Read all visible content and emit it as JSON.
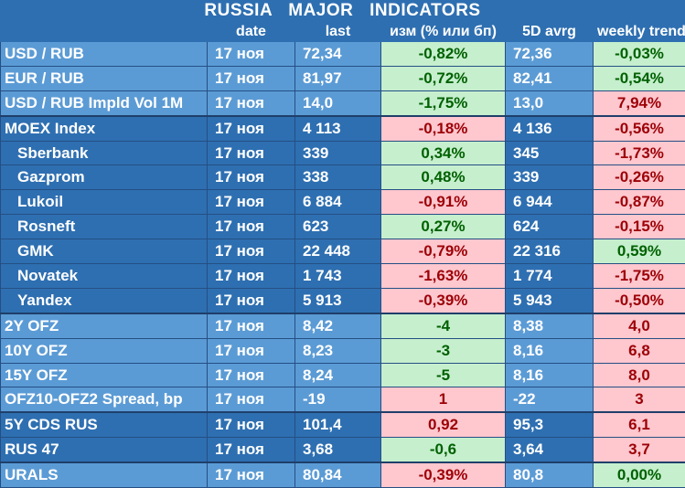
{
  "title": "RUSSIA  MAJOR  INDICATORS",
  "headers": [
    "date",
    "last",
    "изм (% или бп)",
    "5D avrg",
    "weekly trend"
  ],
  "colors": {
    "light_blue": "#5b9bd5",
    "dark_blue": "#2e6fb1",
    "positive_bg": "#c6efce",
    "positive_text": "#006100",
    "negative_bg": "#ffc7ce",
    "negative_text": "#9c0006"
  },
  "rows": [
    {
      "name": "USD / RUB",
      "date": "17 ноя",
      "last": "72,34",
      "chg": "-0,82%",
      "chg_style": "g",
      "avg": "72,36",
      "trend": "-0,03%",
      "trend_style": "g",
      "shade": "light",
      "indent": false,
      "sep": false
    },
    {
      "name": "EUR / RUB",
      "date": "17 ноя",
      "last": "81,97",
      "chg": "-0,72%",
      "chg_style": "g",
      "avg": "82,41",
      "trend": "-0,54%",
      "trend_style": "g",
      "shade": "light",
      "indent": false,
      "sep": false
    },
    {
      "name": "USD / RUB Impld Vol 1M",
      "date": "17 ноя",
      "last": "14,0",
      "chg": "-1,75%",
      "chg_style": "g",
      "avg": "13,0",
      "trend": "7,94%",
      "trend_style": "r",
      "shade": "light",
      "indent": false,
      "sep": false
    },
    {
      "name": "MOEX Index",
      "date": "17 ноя",
      "last": "4 113",
      "chg": "-0,18%",
      "chg_style": "r",
      "avg": "4 136",
      "trend": "-0,56%",
      "trend_style": "r",
      "shade": "dark",
      "indent": false,
      "sep": true
    },
    {
      "name": "Sberbank",
      "date": "17 ноя",
      "last": "339",
      "chg": "0,34%",
      "chg_style": "g",
      "avg": "345",
      "trend": "-1,73%",
      "trend_style": "r",
      "shade": "dark",
      "indent": true,
      "sep": false
    },
    {
      "name": "Gazprom",
      "date": "17 ноя",
      "last": "338",
      "chg": "0,48%",
      "chg_style": "g",
      "avg": "339",
      "trend": "-0,26%",
      "trend_style": "r",
      "shade": "dark",
      "indent": true,
      "sep": false
    },
    {
      "name": "Lukoil",
      "date": "17 ноя",
      "last": "6 884",
      "chg": "-0,91%",
      "chg_style": "r",
      "avg": "6 944",
      "trend": "-0,87%",
      "trend_style": "r",
      "shade": "dark",
      "indent": true,
      "sep": false
    },
    {
      "name": "Rosneft",
      "date": "17 ноя",
      "last": "623",
      "chg": "0,27%",
      "chg_style": "g",
      "avg": "624",
      "trend": "-0,15%",
      "trend_style": "r",
      "shade": "dark",
      "indent": true,
      "sep": false
    },
    {
      "name": "GMK",
      "date": "17 ноя",
      "last": "22 448",
      "chg": "-0,79%",
      "chg_style": "r",
      "avg": "22 316",
      "trend": "0,59%",
      "trend_style": "g",
      "shade": "dark",
      "indent": true,
      "sep": false
    },
    {
      "name": "Novatek",
      "date": "17 ноя",
      "last": "1 743",
      "chg": "-1,63%",
      "chg_style": "r",
      "avg": "1 774",
      "trend": "-1,75%",
      "trend_style": "r",
      "shade": "dark",
      "indent": true,
      "sep": false
    },
    {
      "name": "Yandex",
      "date": "17 ноя",
      "last": "5 913",
      "chg": "-0,39%",
      "chg_style": "r",
      "avg": "5 943",
      "trend": "-0,50%",
      "trend_style": "r",
      "shade": "dark",
      "indent": true,
      "sep": false
    },
    {
      "name": "2Y OFZ",
      "date": "17 ноя",
      "last": "8,42",
      "chg": "-4",
      "chg_style": "g",
      "avg": "8,38",
      "trend": "4,0",
      "trend_style": "r",
      "shade": "light",
      "indent": false,
      "sep": true
    },
    {
      "name": "10Y OFZ",
      "date": "17 ноя",
      "last": "8,23",
      "chg": "-3",
      "chg_style": "g",
      "avg": "8,16",
      "trend": "6,8",
      "trend_style": "r",
      "shade": "light",
      "indent": false,
      "sep": false
    },
    {
      "name": "15Y OFZ",
      "date": "17 ноя",
      "last": "8,24",
      "chg": "-5",
      "chg_style": "g",
      "avg": "8,16",
      "trend": "8,0",
      "trend_style": "r",
      "shade": "light",
      "indent": false,
      "sep": false
    },
    {
      "name": "OFZ10-OFZ2 Spread, bp",
      "date": "17 ноя",
      "last": "-19",
      "chg": "1",
      "chg_style": "r",
      "avg": "-22",
      "trend": "3",
      "trend_style": "r",
      "shade": "light",
      "indent": false,
      "sep": false
    },
    {
      "name": "5Y CDS RUS",
      "date": "17 ноя",
      "last": "101,4",
      "chg": "0,92",
      "chg_style": "r",
      "avg": "95,3",
      "trend": "6,1",
      "trend_style": "r",
      "shade": "dark",
      "indent": false,
      "sep": true
    },
    {
      "name": "RUS 47",
      "date": "17 ноя",
      "last": "3,68",
      "chg": "-0,6",
      "chg_style": "g",
      "avg": "3,64",
      "trend": "3,7",
      "trend_style": "r",
      "shade": "dark",
      "indent": false,
      "sep": false
    },
    {
      "name": "URALS",
      "date": "17 ноя",
      "last": "80,84",
      "chg": "-0,39%",
      "chg_style": "r",
      "avg": "80,8",
      "trend": "0,00%",
      "trend_style": "g",
      "shade": "light",
      "indent": false,
      "sep": true
    }
  ]
}
